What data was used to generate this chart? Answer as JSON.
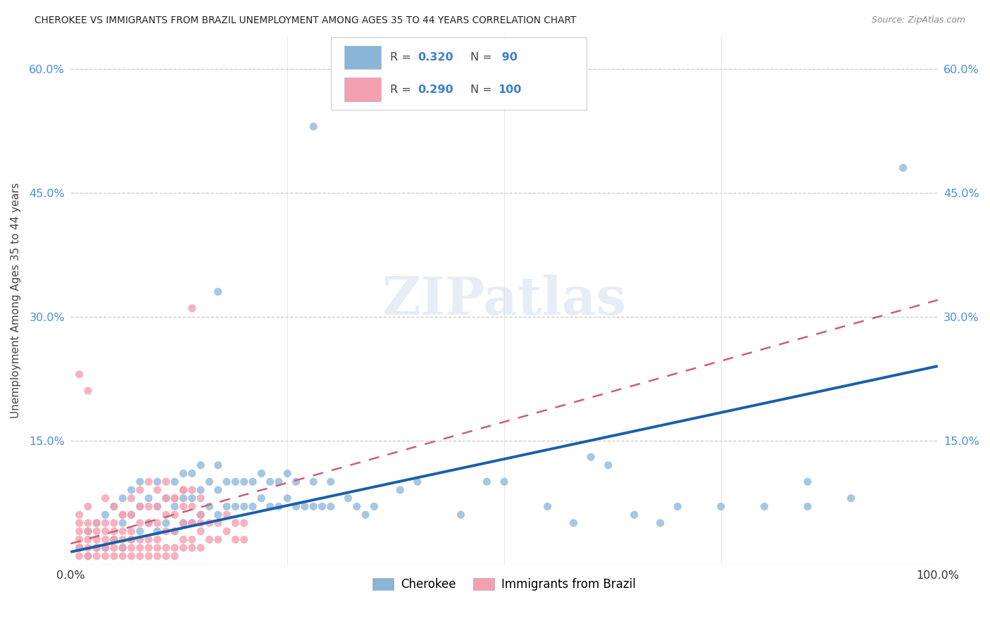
{
  "title": "CHEROKEE VS IMMIGRANTS FROM BRAZIL UNEMPLOYMENT AMONG AGES 35 TO 44 YEARS CORRELATION CHART",
  "source": "Source: ZipAtlas.com",
  "ylabel": "Unemployment Among Ages 35 to 44 years",
  "y_ticks": [
    0.0,
    0.15,
    0.3,
    0.45,
    0.6
  ],
  "y_tick_labels_left": [
    "",
    "15.0%",
    "30.0%",
    "45.0%",
    "60.0%"
  ],
  "y_tick_labels_right": [
    "",
    "15.0%",
    "30.0%",
    "45.0%",
    "60.0%"
  ],
  "x_tick_labels": [
    "0.0%",
    "",
    "",
    "",
    "100.0%"
  ],
  "legend_label_blue": "Cherokee",
  "legend_label_pink": "Immigrants from Brazil",
  "blue_color": "#8ab4d8",
  "pink_color": "#f4a0b0",
  "trend_blue_color": "#1a5fa8",
  "trend_pink_color": "#cc6070",
  "legend_R_blue": "0.320",
  "legend_N_blue": " 90",
  "legend_R_pink": "0.290",
  "legend_N_pink": "100",
  "rn_color": "#3a7ecf",
  "watermark_text": "ZIPatlas",
  "blue_x": [
    0.01,
    0.02,
    0.02,
    0.03,
    0.03,
    0.04,
    0.04,
    0.05,
    0.05,
    0.06,
    0.06,
    0.06,
    0.07,
    0.07,
    0.07,
    0.08,
    0.08,
    0.08,
    0.09,
    0.09,
    0.1,
    0.1,
    0.1,
    0.11,
    0.11,
    0.12,
    0.12,
    0.12,
    0.13,
    0.13,
    0.13,
    0.14,
    0.14,
    0.14,
    0.15,
    0.15,
    0.15,
    0.16,
    0.16,
    0.17,
    0.17,
    0.17,
    0.18,
    0.18,
    0.19,
    0.19,
    0.2,
    0.2,
    0.21,
    0.21,
    0.22,
    0.22,
    0.23,
    0.23,
    0.24,
    0.24,
    0.25,
    0.25,
    0.26,
    0.26,
    0.27,
    0.28,
    0.28,
    0.29,
    0.3,
    0.3,
    0.32,
    0.33,
    0.34,
    0.35,
    0.38,
    0.4,
    0.45,
    0.48,
    0.5,
    0.55,
    0.58,
    0.6,
    0.62,
    0.65,
    0.68,
    0.7,
    0.75,
    0.8,
    0.85,
    0.85,
    0.9,
    0.28,
    0.17,
    0.96
  ],
  "blue_y": [
    0.02,
    0.01,
    0.04,
    0.02,
    0.05,
    0.02,
    0.06,
    0.03,
    0.07,
    0.02,
    0.05,
    0.08,
    0.03,
    0.06,
    0.09,
    0.04,
    0.07,
    0.1,
    0.05,
    0.08,
    0.04,
    0.07,
    0.1,
    0.05,
    0.08,
    0.04,
    0.07,
    0.1,
    0.05,
    0.08,
    0.11,
    0.05,
    0.08,
    0.11,
    0.06,
    0.09,
    0.12,
    0.07,
    0.1,
    0.06,
    0.09,
    0.12,
    0.07,
    0.1,
    0.07,
    0.1,
    0.07,
    0.1,
    0.07,
    0.1,
    0.08,
    0.11,
    0.07,
    0.1,
    0.07,
    0.1,
    0.08,
    0.11,
    0.07,
    0.1,
    0.07,
    0.07,
    0.1,
    0.07,
    0.07,
    0.1,
    0.08,
    0.07,
    0.06,
    0.07,
    0.09,
    0.1,
    0.06,
    0.1,
    0.1,
    0.07,
    0.05,
    0.13,
    0.12,
    0.06,
    0.05,
    0.07,
    0.07,
    0.07,
    0.07,
    0.1,
    0.08,
    0.53,
    0.33,
    0.48
  ],
  "pink_x": [
    0.01,
    0.01,
    0.01,
    0.01,
    0.01,
    0.02,
    0.02,
    0.02,
    0.02,
    0.02,
    0.03,
    0.03,
    0.03,
    0.03,
    0.03,
    0.04,
    0.04,
    0.04,
    0.04,
    0.04,
    0.05,
    0.05,
    0.05,
    0.05,
    0.05,
    0.06,
    0.06,
    0.06,
    0.06,
    0.06,
    0.07,
    0.07,
    0.07,
    0.07,
    0.07,
    0.08,
    0.08,
    0.08,
    0.08,
    0.08,
    0.09,
    0.09,
    0.09,
    0.09,
    0.09,
    0.1,
    0.1,
    0.1,
    0.1,
    0.1,
    0.11,
    0.11,
    0.11,
    0.11,
    0.11,
    0.12,
    0.12,
    0.12,
    0.12,
    0.12,
    0.13,
    0.13,
    0.13,
    0.13,
    0.13,
    0.14,
    0.14,
    0.14,
    0.14,
    0.14,
    0.15,
    0.15,
    0.15,
    0.15,
    0.16,
    0.16,
    0.17,
    0.17,
    0.18,
    0.18,
    0.19,
    0.19,
    0.2,
    0.2,
    0.01,
    0.02,
    0.14,
    0.15,
    0.04,
    0.05,
    0.06,
    0.07,
    0.08,
    0.09,
    0.1,
    0.11,
    0.12,
    0.13,
    0.01,
    0.02
  ],
  "pink_y": [
    0.01,
    0.02,
    0.03,
    0.04,
    0.05,
    0.01,
    0.02,
    0.03,
    0.04,
    0.05,
    0.01,
    0.02,
    0.03,
    0.04,
    0.05,
    0.01,
    0.02,
    0.03,
    0.04,
    0.05,
    0.01,
    0.02,
    0.03,
    0.04,
    0.05,
    0.01,
    0.02,
    0.03,
    0.04,
    0.06,
    0.01,
    0.02,
    0.03,
    0.04,
    0.06,
    0.01,
    0.02,
    0.03,
    0.05,
    0.07,
    0.01,
    0.02,
    0.03,
    0.05,
    0.07,
    0.01,
    0.02,
    0.03,
    0.05,
    0.07,
    0.01,
    0.02,
    0.04,
    0.06,
    0.08,
    0.01,
    0.02,
    0.04,
    0.06,
    0.08,
    0.02,
    0.03,
    0.05,
    0.07,
    0.09,
    0.02,
    0.03,
    0.05,
    0.07,
    0.09,
    0.02,
    0.04,
    0.06,
    0.08,
    0.03,
    0.05,
    0.03,
    0.05,
    0.04,
    0.06,
    0.03,
    0.05,
    0.03,
    0.05,
    0.23,
    0.21,
    0.31,
    0.05,
    0.08,
    0.07,
    0.06,
    0.08,
    0.09,
    0.1,
    0.09,
    0.1,
    0.08,
    0.09,
    0.06,
    0.07
  ]
}
